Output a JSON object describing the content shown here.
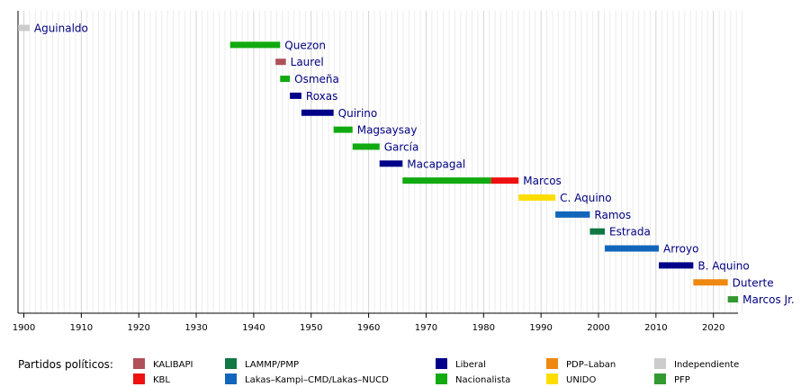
{
  "chart_data": {
    "type": "timeline",
    "x_axis": {
      "min": 1899,
      "max": 2025,
      "ticks": [
        1900,
        1910,
        1920,
        1930,
        1940,
        1950,
        1960,
        1970,
        1980,
        1990,
        2000,
        2010,
        2020
      ],
      "grid": "yearly"
    },
    "presidents": [
      {
        "name": "Aguinaldo",
        "terms": [
          {
            "start": 1899,
            "end": 1901,
            "party": "Independiente"
          }
        ]
      },
      {
        "name": "Quezon",
        "terms": [
          {
            "start": 1935.9,
            "end": 1944.6,
            "party": "Nacionalista"
          }
        ]
      },
      {
        "name": "Laurel",
        "terms": [
          {
            "start": 1943.8,
            "end": 1945.6,
            "party": "KALIBAPI"
          }
        ]
      },
      {
        "name": "Osmeña",
        "terms": [
          {
            "start": 1944.6,
            "end": 1946.3,
            "party": "Nacionalista"
          }
        ]
      },
      {
        "name": "Roxas",
        "terms": [
          {
            "start": 1946.3,
            "end": 1948.3,
            "party": "Liberal"
          }
        ]
      },
      {
        "name": "Quirino",
        "terms": [
          {
            "start": 1948.3,
            "end": 1953.9,
            "party": "Liberal"
          }
        ]
      },
      {
        "name": "Magsaysay",
        "terms": [
          {
            "start": 1953.9,
            "end": 1957.2,
            "party": "Nacionalista"
          }
        ]
      },
      {
        "name": "García",
        "terms": [
          {
            "start": 1957.2,
            "end": 1961.9,
            "party": "Nacionalista"
          }
        ]
      },
      {
        "name": "Macapagal",
        "terms": [
          {
            "start": 1961.9,
            "end": 1965.9,
            "party": "Liberal"
          }
        ]
      },
      {
        "name": "Marcos",
        "terms": [
          {
            "start": 1965.9,
            "end": 1981.3,
            "party": "Nacionalista"
          },
          {
            "start": 1981.3,
            "end": 1986.1,
            "party": "KBL"
          }
        ]
      },
      {
        "name": "C. Aquino",
        "terms": [
          {
            "start": 1986.1,
            "end": 1992.5,
            "party": "UNIDO"
          }
        ]
      },
      {
        "name": "Ramos",
        "terms": [
          {
            "start": 1992.5,
            "end": 1998.5,
            "party": "Lakas–Kampi–CMD/Lakas–NUCD"
          }
        ]
      },
      {
        "name": "Estrada",
        "terms": [
          {
            "start": 1998.5,
            "end": 2001.1,
            "party": "LAMMP/PMP"
          }
        ]
      },
      {
        "name": "Arroyo",
        "terms": [
          {
            "start": 2001.1,
            "end": 2010.5,
            "party": "Lakas–Kampi–CMD/Lakas–NUCD"
          }
        ]
      },
      {
        "name": "B. Aquino",
        "terms": [
          {
            "start": 2010.5,
            "end": 2016.5,
            "party": "Liberal"
          }
        ]
      },
      {
        "name": "Duterte",
        "terms": [
          {
            "start": 2016.5,
            "end": 2022.5,
            "party": "PDP–Laban"
          }
        ]
      },
      {
        "name": "Marcos Jr.",
        "terms": [
          {
            "start": 2022.5,
            "end": 2024.3,
            "party": "PFP"
          }
        ]
      }
    ],
    "legend": {
      "title": "Partidos políticos:",
      "items": [
        {
          "label": "KALIBAPI",
          "color": "#b05058"
        },
        {
          "label": "KBL",
          "color": "#ee1111"
        },
        {
          "label": "LAMMP/PMP",
          "color": "#117744"
        },
        {
          "label": "Lakas–Kampi–CMD/Lakas–NUCD",
          "color": "#1166bb"
        },
        {
          "label": "Liberal",
          "color": "#000088"
        },
        {
          "label": "Nacionalista",
          "color": "#11aa11"
        },
        {
          "label": "PDP–Laban",
          "color": "#ee8811"
        },
        {
          "label": "UNIDO",
          "color": "#ffdd00"
        },
        {
          "label": "Independiente",
          "color": "#cccccc"
        },
        {
          "label": "PFP",
          "color": "#339933"
        }
      ]
    }
  }
}
